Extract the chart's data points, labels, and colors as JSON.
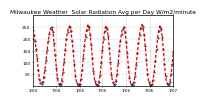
{
  "title": "Milwaukee Weather  Solar Radiation Avg per Day W/m2/minute",
  "title_fontsize": 4.2,
  "background_color": "#ffffff",
  "plot_bg_color": "#ffffff",
  "grid_color": "#999999",
  "line_color": "#dd0000",
  "avg_color": "#000000",
  "ylim": [
    0,
    300
  ],
  "yticks": [
    50,
    100,
    150,
    200,
    250
  ],
  "ytick_labels": [
    "50",
    "100",
    "150",
    "200",
    "250"
  ],
  "ylabel_fontsize": 3.2,
  "xlabel_fontsize": 3.0,
  "values": [
    240,
    220,
    195,
    160,
    120,
    70,
    30,
    15,
    10,
    20,
    40,
    70,
    110,
    155,
    195,
    225,
    245,
    250,
    230,
    185,
    135,
    80,
    35,
    10,
    8,
    12,
    25,
    60,
    105,
    155,
    200,
    230,
    250,
    255,
    235,
    195,
    150,
    95,
    45,
    15,
    8,
    5,
    10,
    30,
    70,
    120,
    170,
    210,
    240,
    258,
    250,
    220,
    175,
    120,
    65,
    25,
    10,
    5,
    8,
    20,
    50,
    100,
    155,
    200,
    235,
    255,
    245,
    215,
    165,
    105,
    50,
    18,
    8,
    10,
    22,
    55,
    100,
    150,
    195,
    225,
    245,
    250,
    230,
    190,
    140,
    85,
    38,
    12,
    6,
    8,
    18,
    45,
    90,
    140,
    185,
    220,
    248,
    260,
    250,
    218,
    170,
    110,
    55,
    20,
    8,
    5,
    10,
    28,
    62,
    108,
    160,
    205,
    238,
    255,
    245,
    210,
    158,
    98,
    45,
    16,
    7,
    9,
    20,
    52,
    98,
    148
  ],
  "avg_values": [
    238,
    218,
    192,
    158,
    118,
    68,
    28,
    13,
    8,
    18,
    38,
    68,
    108,
    152,
    192,
    222,
    242,
    248,
    228,
    182,
    132,
    78,
    33,
    8,
    6,
    10,
    22,
    58,
    102,
    152,
    198,
    228,
    248,
    252,
    232,
    192,
    148,
    92,
    42,
    13,
    6,
    3,
    8,
    28,
    68,
    118,
    168,
    208,
    238,
    255,
    248,
    218,
    172,
    118,
    62,
    22,
    8,
    3,
    6,
    18,
    48,
    98,
    152,
    198,
    232,
    252,
    242,
    212,
    162,
    102,
    48,
    16,
    6,
    8,
    20,
    52,
    98,
    148,
    192,
    222,
    242,
    248,
    228,
    188,
    138,
    82,
    35,
    10,
    4,
    6,
    16,
    42,
    88,
    138,
    182,
    218,
    245,
    258,
    248,
    215,
    168,
    108,
    52,
    18,
    6,
    3,
    8,
    25,
    60,
    105,
    158,
    202,
    235,
    252,
    242,
    208,
    155,
    95,
    42,
    14,
    5,
    7,
    18,
    50,
    95,
    145
  ],
  "x_tick_labels": [
    "1/04",
    "7/04",
    "1/05",
    "7/05",
    "1/06",
    "7/06",
    "1/07"
  ],
  "vgrid_n": 7
}
